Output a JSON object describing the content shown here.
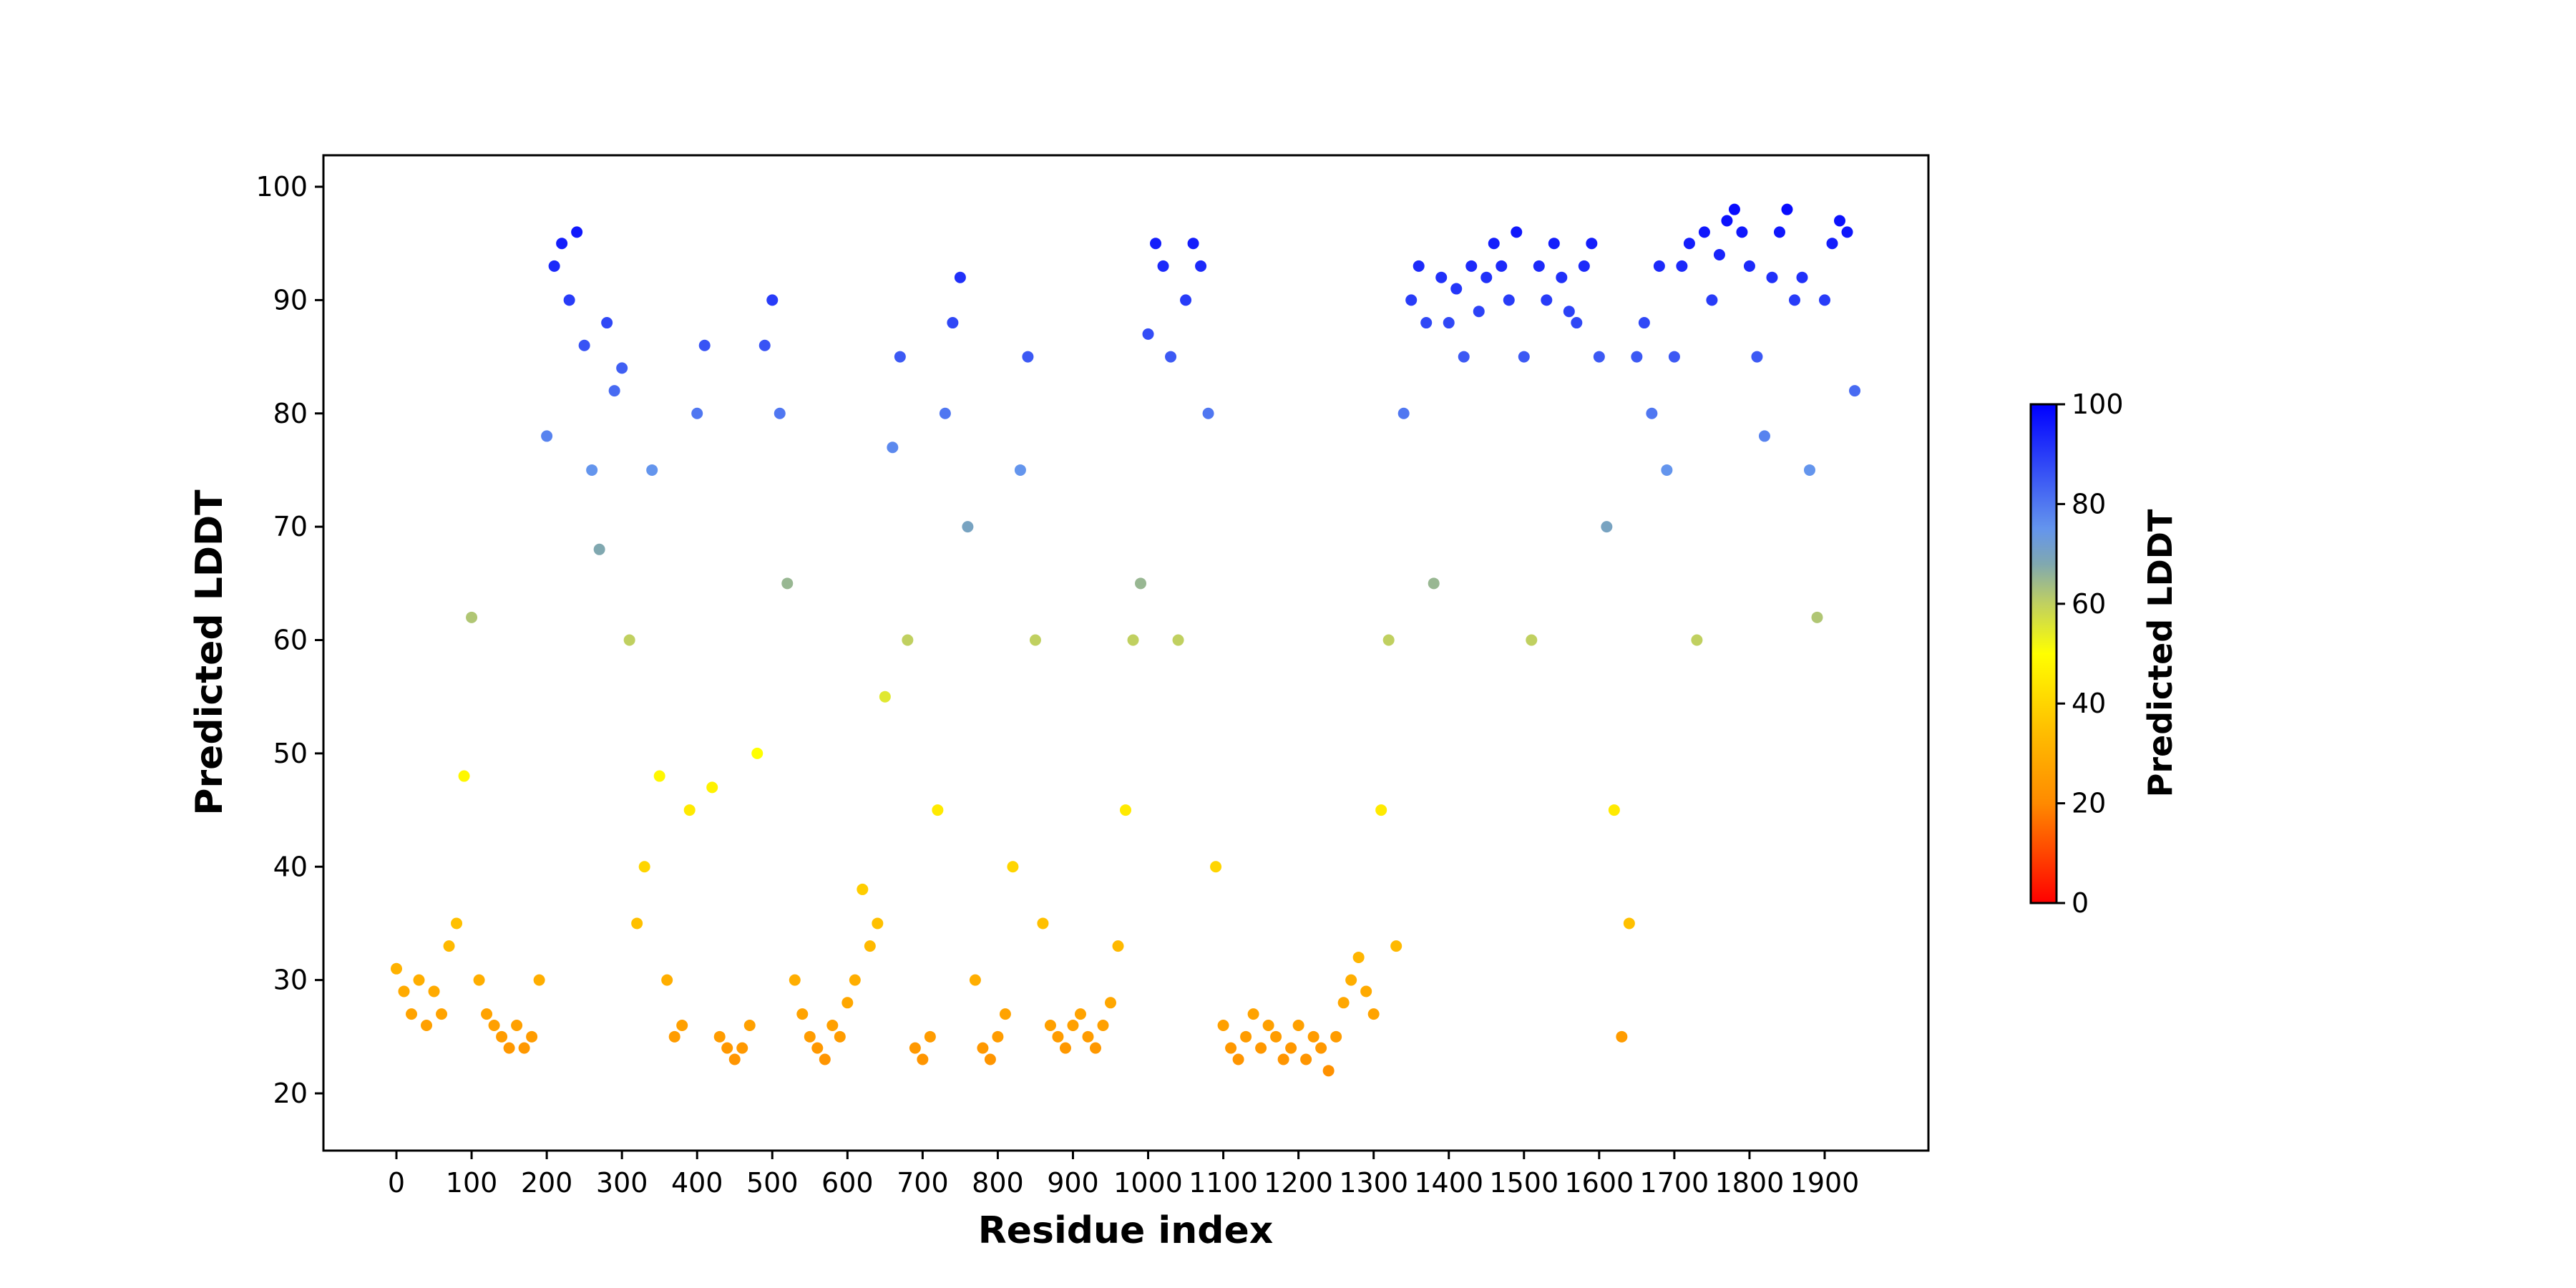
{
  "chart_data": {
    "type": "scatter",
    "title": "",
    "xlabel": "Residue index",
    "ylabel": "Predicted LDDT",
    "xlim": [
      -95,
      2025
    ],
    "ylim": [
      15,
      103
    ],
    "x_ticks": [
      "0",
      "100",
      "200",
      "300",
      "400",
      "500",
      "600",
      "700",
      "800",
      "900",
      "1000",
      "1100",
      "1200",
      "1300",
      "1400",
      "1500",
      "1600",
      "1700",
      "1800",
      "1900"
    ],
    "y_ticks": [
      "20",
      "30",
      "40",
      "50",
      "60",
      "70",
      "80",
      "90",
      "100"
    ],
    "grid": false,
    "colorbar": {
      "label": "Predicted LDDT",
      "range": [
        0,
        100
      ],
      "ticks": [
        "0",
        "20",
        "40",
        "60",
        "80",
        "100"
      ],
      "stops": [
        [
          0,
          "#ff0000"
        ],
        [
          20,
          "#ff8a00"
        ],
        [
          35,
          "#ffc000"
        ],
        [
          50,
          "#ffff00"
        ],
        [
          60,
          "#c0d060"
        ],
        [
          68,
          "#80a8b0"
        ],
        [
          75,
          "#6495ed"
        ],
        [
          100,
          "#0000ff"
        ]
      ]
    },
    "x": [
      0,
      10,
      20,
      30,
      40,
      50,
      60,
      70,
      80,
      90,
      100,
      110,
      120,
      130,
      140,
      150,
      160,
      170,
      180,
      190,
      200,
      210,
      220,
      230,
      240,
      250,
      260,
      270,
      280,
      290,
      300,
      310,
      320,
      330,
      340,
      350,
      360,
      370,
      380,
      390,
      400,
      410,
      420,
      430,
      440,
      450,
      460,
      470,
      480,
      490,
      500,
      510,
      520,
      530,
      540,
      550,
      560,
      570,
      580,
      590,
      600,
      610,
      620,
      630,
      640,
      650,
      660,
      670,
      680,
      690,
      700,
      710,
      720,
      730,
      740,
      750,
      760,
      770,
      780,
      790,
      800,
      810,
      820,
      830,
      840,
      850,
      860,
      870,
      880,
      890,
      900,
      910,
      920,
      930,
      940,
      950,
      960,
      970,
      980,
      990,
      1000,
      1010,
      1020,
      1030,
      1040,
      1050,
      1060,
      1070,
      1080,
      1090,
      1100,
      1110,
      1120,
      1130,
      1140,
      1150,
      1160,
      1170,
      1180,
      1190,
      1200,
      1210,
      1220,
      1230,
      1240,
      1250,
      1260,
      1270,
      1280,
      1290,
      1300,
      1310,
      1320,
      1330,
      1340,
      1350,
      1360,
      1370,
      1380,
      1390,
      1400,
      1410,
      1420,
      1430,
      1440,
      1450,
      1460,
      1470,
      1480,
      1490,
      1500,
      1510,
      1520,
      1530,
      1540,
      1550,
      1560,
      1570,
      1580,
      1590,
      1600,
      1610,
      1620,
      1630,
      1640,
      1650,
      1660,
      1670,
      1680,
      1690,
      1700,
      1710,
      1720,
      1730,
      1740,
      1750,
      1760,
      1770,
      1780,
      1790,
      1800,
      1810,
      1820,
      1830,
      1840,
      1850,
      1860,
      1870,
      1880,
      1890,
      1900,
      1910,
      1920,
      1930,
      1940
    ],
    "y": [
      31,
      29,
      27,
      30,
      26,
      29,
      27,
      33,
      35,
      48,
      62,
      30,
      27,
      26,
      25,
      24,
      26,
      24,
      25,
      30,
      78,
      93,
      95,
      90,
      96,
      86,
      75,
      68,
      88,
      82,
      84,
      60,
      35,
      40,
      75,
      48,
      30,
      25,
      26,
      45,
      80,
      86,
      47,
      25,
      24,
      23,
      24,
      26,
      50,
      86,
      90,
      80,
      65,
      30,
      27,
      25,
      24,
      23,
      26,
      25,
      28,
      30,
      38,
      33,
      35,
      55,
      77,
      85,
      60,
      24,
      23,
      25,
      45,
      80,
      88,
      92,
      70,
      30,
      24,
      23,
      25,
      27,
      40,
      75,
      85,
      60,
      35,
      26,
      25,
      24,
      26,
      27,
      25,
      24,
      26,
      28,
      33,
      45,
      60,
      65,
      87,
      95,
      93,
      85,
      60,
      90,
      95,
      93,
      80,
      40,
      26,
      24,
      23,
      25,
      27,
      24,
      26,
      25,
      23,
      24,
      26,
      23,
      25,
      24,
      22,
      25,
      28,
      30,
      32,
      29,
      27,
      45,
      60,
      33,
      80,
      90,
      93,
      88,
      65,
      92,
      88,
      91,
      85,
      93,
      89,
      92,
      95,
      93,
      90,
      96,
      85,
      60,
      93,
      90,
      95,
      92,
      89,
      88,
      93,
      95,
      85,
      70,
      45,
      25,
      35,
      85,
      88,
      80,
      93,
      75,
      85,
      93,
      95,
      60,
      96,
      90,
      94,
      97,
      98,
      96,
      93,
      85,
      78,
      92,
      96,
      98,
      90,
      92,
      75,
      62,
      90,
      95,
      97,
      96,
      82
    ]
  }
}
